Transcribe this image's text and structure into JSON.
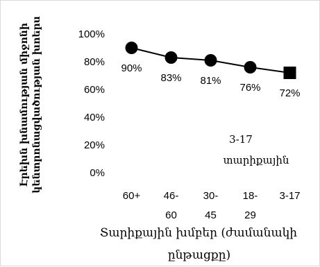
{
  "chart_data": {
    "type": "line",
    "ylabel_lines": [
      "Էրեխն խնամության միջոնի",
      "կենտրոնացվածության խոերս"
    ],
    "xlabel_lines": [
      "Տարիքային խմբեր (ժամանակի",
      "ընթացքը)"
    ],
    "categories": [
      {
        "lines": [
          "60+"
        ]
      },
      {
        "lines": [
          "46-",
          "60"
        ]
      },
      {
        "lines": [
          "30-",
          "45"
        ]
      },
      {
        "lines": [
          "18-",
          "29"
        ]
      },
      {
        "lines": [
          "3-17"
        ]
      }
    ],
    "values": [
      90,
      83,
      81,
      76,
      72
    ],
    "data_labels": [
      "90%",
      "83%",
      "81%",
      "76%",
      "72%"
    ],
    "yticks": [
      "0%",
      "20%",
      "40%",
      "60%",
      "80%",
      "100%"
    ],
    "ylim": [
      0,
      100
    ],
    "annotation_lines": [
      "3-17",
      "տարիքային"
    ],
    "marker_color": "#000000",
    "line_color": "#000000",
    "legend": "none",
    "grid": false
  }
}
